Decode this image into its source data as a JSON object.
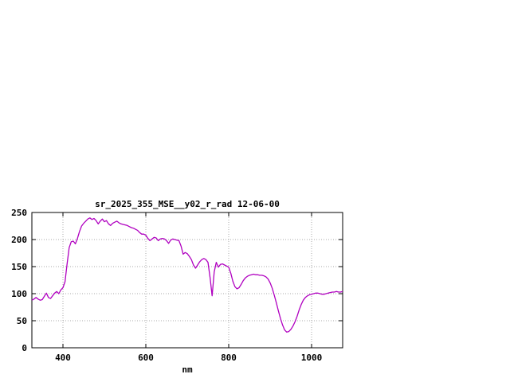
{
  "window": {
    "background": "#ffffff"
  },
  "chart_data": {
    "type": "line",
    "title": "sr_2025_355_MSE__y02_r_rad 12-06-00",
    "xlabel": "nm",
    "ylabel": "",
    "xlim": [
      325,
      1075
    ],
    "ylim": [
      0,
      250
    ],
    "x_ticks": [
      400,
      600,
      800,
      1000
    ],
    "y_ticks": [
      0,
      50,
      100,
      150,
      200,
      250
    ],
    "grid": true,
    "legend": "none",
    "colors": {
      "line": "#b000c0",
      "grid": "#a8a8a8",
      "axis": "#000000",
      "text": "#000000"
    },
    "series": [
      {
        "name": "sr_2025_355_MSE__y02_r_rad",
        "x": [
          325,
          330,
          335,
          340,
          345,
          350,
          355,
          360,
          365,
          370,
          375,
          380,
          385,
          390,
          395,
          400,
          405,
          410,
          415,
          420,
          425,
          430,
          435,
          440,
          445,
          450,
          455,
          460,
          465,
          470,
          475,
          480,
          485,
          490,
          495,
          500,
          505,
          510,
          515,
          520,
          525,
          530,
          535,
          540,
          545,
          550,
          555,
          560,
          565,
          570,
          575,
          580,
          585,
          590,
          595,
          600,
          605,
          610,
          615,
          620,
          625,
          630,
          635,
          640,
          645,
          650,
          655,
          660,
          665,
          670,
          675,
          680,
          685,
          690,
          695,
          700,
          705,
          710,
          715,
          720,
          725,
          730,
          735,
          740,
          745,
          750,
          755,
          760,
          765,
          770,
          775,
          780,
          785,
          790,
          795,
          800,
          805,
          810,
          815,
          820,
          825,
          830,
          835,
          840,
          845,
          850,
          855,
          860,
          865,
          870,
          875,
          880,
          885,
          890,
          895,
          900,
          905,
          910,
          915,
          920,
          925,
          930,
          935,
          940,
          945,
          950,
          955,
          960,
          965,
          970,
          975,
          980,
          985,
          990,
          995,
          1000,
          1005,
          1010,
          1015,
          1020,
          1025,
          1030,
          1035,
          1040,
          1045,
          1050,
          1055,
          1060,
          1065,
          1070,
          1075
        ],
        "y": [
          88,
          90,
          93,
          90,
          88,
          89,
          95,
          101,
          93,
          91,
          96,
          101,
          104,
          100,
          107,
          111,
          122,
          155,
          185,
          196,
          197,
          192,
          202,
          215,
          225,
          230,
          234,
          238,
          240,
          237,
          239,
          235,
          229,
          234,
          238,
          233,
          235,
          229,
          226,
          230,
          232,
          234,
          231,
          229,
          228,
          227,
          226,
          224,
          222,
          221,
          219,
          217,
          213,
          210,
          210,
          208,
          202,
          198,
          201,
          204,
          203,
          198,
          201,
          202,
          201,
          198,
          193,
          199,
          201,
          200,
          199,
          198,
          188,
          173,
          176,
          174,
          169,
          163,
          153,
          147,
          153,
          159,
          163,
          165,
          163,
          158,
          130,
          96,
          140,
          158,
          149,
          154,
          155,
          153,
          151,
          149,
          138,
          123,
          113,
          109,
          111,
          117,
          124,
          129,
          132,
          134,
          135,
          136,
          135,
          135,
          134,
          134,
          133,
          131,
          127,
          120,
          110,
          97,
          83,
          68,
          54,
          42,
          33,
          29,
          30,
          34,
          40,
          48,
          58,
          70,
          80,
          88,
          93,
          96,
          98,
          99,
          100,
          101,
          101,
          100,
          99,
          99,
          100,
          101,
          102,
          103,
          103,
          104,
          103,
          103,
          104
        ]
      }
    ]
  }
}
